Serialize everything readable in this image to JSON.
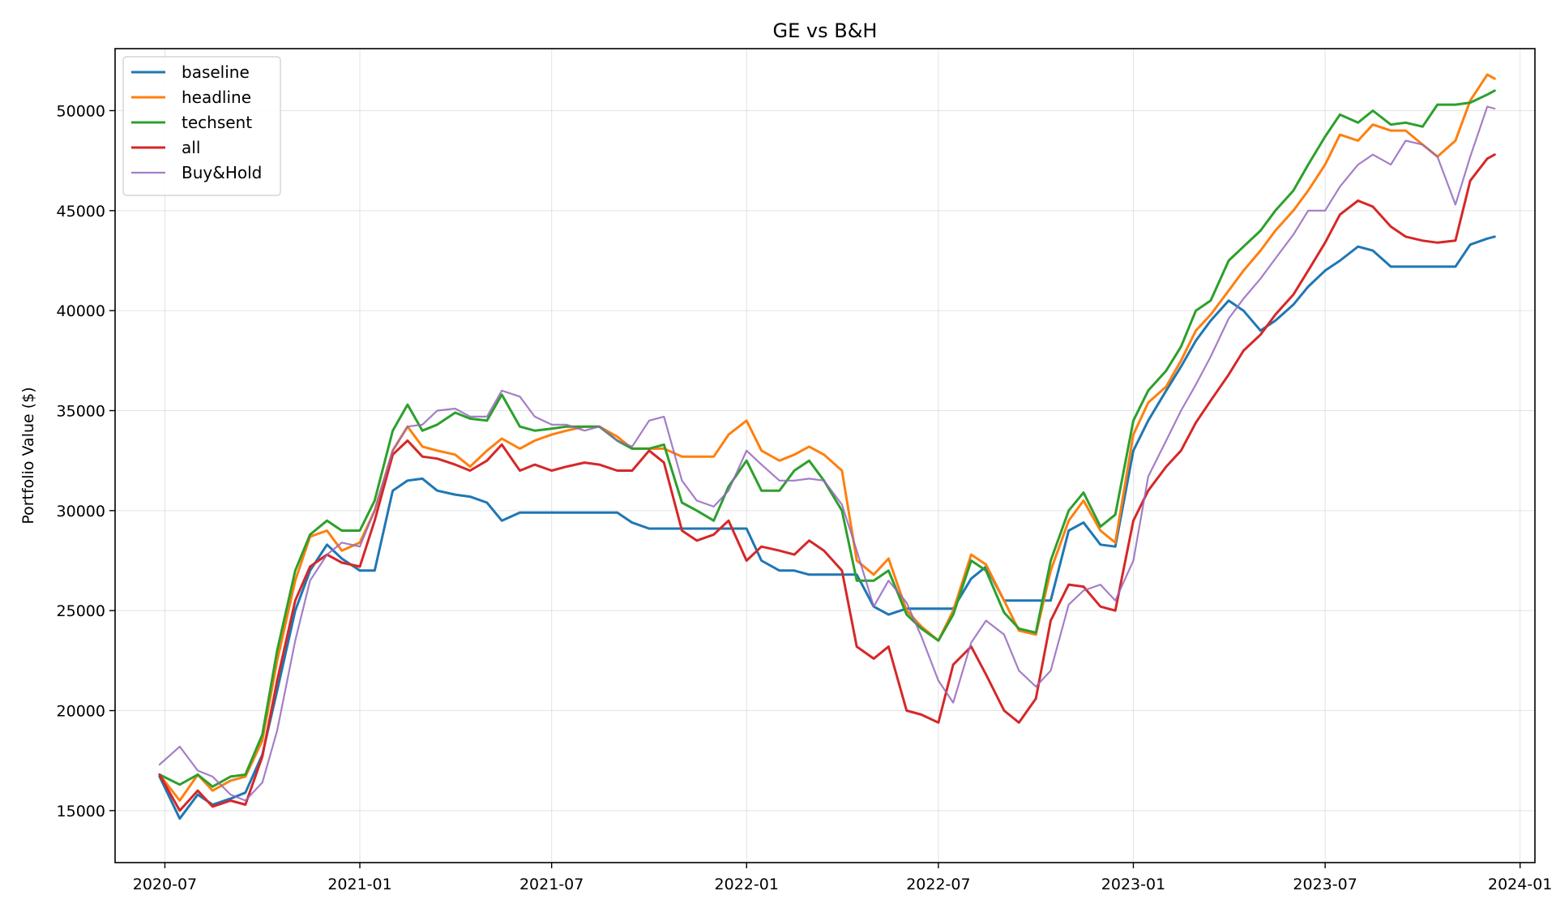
{
  "chart_data": {
    "type": "line",
    "title": "GE vs B&H",
    "xlabel": "",
    "ylabel": "Portfolio Value ($)",
    "x_ticks": [
      "2020-07",
      "2021-01",
      "2021-07",
      "2022-01",
      "2022-07",
      "2023-01",
      "2023-07",
      "2024-01"
    ],
    "y_ticks": [
      15000,
      20000,
      25000,
      30000,
      35000,
      40000,
      45000,
      50000
    ],
    "xlim": [
      "2020-05-15",
      "2024-01-15"
    ],
    "ylim": [
      12400,
      53100
    ],
    "grid": true,
    "legend_position": "top-left",
    "x": [
      "2020-06-26",
      "2020-07-15",
      "2020-08-01",
      "2020-08-15",
      "2020-09-01",
      "2020-09-15",
      "2020-10-01",
      "2020-10-15",
      "2020-11-01",
      "2020-11-15",
      "2020-12-01",
      "2020-12-15",
      "2021-01-01",
      "2021-01-15",
      "2021-02-01",
      "2021-02-15",
      "2021-03-01",
      "2021-03-15",
      "2021-04-01",
      "2021-04-15",
      "2021-05-01",
      "2021-05-15",
      "2021-06-01",
      "2021-06-15",
      "2021-07-01",
      "2021-07-15",
      "2021-08-01",
      "2021-08-15",
      "2021-09-01",
      "2021-09-15",
      "2021-10-01",
      "2021-10-15",
      "2021-11-01",
      "2021-11-15",
      "2021-12-01",
      "2021-12-15",
      "2022-01-01",
      "2022-01-15",
      "2022-02-01",
      "2022-02-15",
      "2022-03-01",
      "2022-03-15",
      "2022-04-01",
      "2022-04-15",
      "2022-05-01",
      "2022-05-15",
      "2022-06-01",
      "2022-06-15",
      "2022-07-01",
      "2022-07-15",
      "2022-08-01",
      "2022-08-15",
      "2022-09-01",
      "2022-09-15",
      "2022-10-01",
      "2022-10-15",
      "2022-11-01",
      "2022-11-15",
      "2022-12-01",
      "2022-12-15",
      "2023-01-01",
      "2023-01-15",
      "2023-02-01",
      "2023-02-15",
      "2023-03-01",
      "2023-03-15",
      "2023-04-01",
      "2023-04-15",
      "2023-05-01",
      "2023-05-15",
      "2023-06-01",
      "2023-06-15",
      "2023-07-01",
      "2023-07-15",
      "2023-08-01",
      "2023-08-15",
      "2023-09-01",
      "2023-09-15",
      "2023-10-01",
      "2023-10-15",
      "2023-11-01",
      "2023-11-15",
      "2023-12-01",
      "2023-12-08"
    ],
    "series": [
      {
        "name": "baseline",
        "color": "#1f77b4",
        "width": 3.0,
        "values": [
          16700,
          14600,
          15800,
          15300,
          15600,
          15900,
          17800,
          21000,
          25000,
          27000,
          28300,
          27600,
          27000,
          27000,
          31000,
          31500,
          31600,
          31000,
          30800,
          30700,
          30400,
          29500,
          29900,
          29900,
          29900,
          29900,
          29900,
          29900,
          29900,
          29400,
          29100,
          29100,
          29100,
          29100,
          29100,
          29100,
          29100,
          27500,
          27000,
          27000,
          26800,
          26800,
          26800,
          26800,
          25200,
          24800,
          25100,
          25100,
          25100,
          25100,
          26600,
          27200,
          25500,
          25500,
          25500,
          25500,
          29000,
          29400,
          28300,
          28200,
          33000,
          34500,
          36000,
          37200,
          38500,
          39500,
          40500,
          40000,
          39000,
          39500,
          40300,
          41200,
          42000,
          42500,
          43200,
          43000,
          42200,
          42200,
          42200,
          42200,
          42200,
          43300,
          43600,
          43700
        ]
      },
      {
        "name": "headline",
        "color": "#ff7f0e",
        "width": 3.0,
        "values": [
          16800,
          15500,
          16800,
          16000,
          16500,
          16700,
          18500,
          22500,
          26500,
          28700,
          29000,
          28000,
          28400,
          30000,
          33000,
          34200,
          33200,
          33000,
          32800,
          32200,
          33000,
          33600,
          33100,
          33500,
          33800,
          34000,
          34200,
          34200,
          33700,
          33100,
          33100,
          33100,
          32700,
          32700,
          32700,
          33800,
          34500,
          33000,
          32500,
          32800,
          33200,
          32800,
          32000,
          27500,
          26800,
          27600,
          25000,
          24200,
          23500,
          25000,
          27800,
          27300,
          25500,
          24000,
          23800,
          27000,
          29500,
          30500,
          29000,
          28400,
          33800,
          35400,
          36200,
          37500,
          39000,
          39800,
          41000,
          42000,
          43000,
          44000,
          45000,
          46000,
          47300,
          48800,
          48500,
          49300,
          49000,
          49000,
          48300,
          47700,
          48500,
          50500,
          51800,
          51600
        ]
      },
      {
        "name": "techsent",
        "color": "#2ca02c",
        "width": 3.0,
        "values": [
          16800,
          16300,
          16800,
          16200,
          16700,
          16800,
          18800,
          23000,
          27000,
          28800,
          29500,
          29000,
          29000,
          30500,
          34000,
          35300,
          34000,
          34300,
          34900,
          34600,
          34500,
          35800,
          34200,
          34000,
          34100,
          34200,
          34200,
          34200,
          33500,
          33100,
          33100,
          33300,
          30400,
          30000,
          29500,
          31200,
          32500,
          31000,
          31000,
          32000,
          32500,
          31500,
          30000,
          26500,
          26500,
          27000,
          24800,
          24100,
          23500,
          24800,
          27500,
          27000,
          24900,
          24100,
          23900,
          27500,
          30000,
          30900,
          29200,
          29800,
          34500,
          36000,
          37000,
          38200,
          40000,
          40500,
          42500,
          43200,
          44000,
          45000,
          46000,
          47300,
          48700,
          49800,
          49400,
          50000,
          49300,
          49400,
          49200,
          50300,
          50300,
          50400,
          50800,
          51000
        ]
      },
      {
        "name": "all",
        "color": "#d62728",
        "width": 3.0,
        "values": [
          16800,
          15000,
          16000,
          15200,
          15500,
          15300,
          17700,
          21500,
          25500,
          27200,
          27800,
          27400,
          27200,
          29500,
          32800,
          33500,
          32700,
          32600,
          32300,
          32000,
          32500,
          33300,
          32000,
          32300,
          32000,
          32200,
          32400,
          32300,
          32000,
          32000,
          33000,
          32400,
          29000,
          28500,
          28800,
          29500,
          27500,
          28200,
          28000,
          27800,
          28500,
          28000,
          27000,
          23200,
          22600,
          23200,
          20000,
          19800,
          19400,
          22300,
          23200,
          21800,
          20000,
          19400,
          20600,
          24500,
          26300,
          26200,
          25200,
          25000,
          29500,
          31000,
          32200,
          33000,
          34400,
          35500,
          36800,
          38000,
          38800,
          39800,
          40800,
          42000,
          43400,
          44800,
          45500,
          45200,
          44200,
          43700,
          43500,
          43400,
          43500,
          46500,
          47600,
          47800
        ]
      },
      {
        "name": "Buy&Hold",
        "color": "#9467bd",
        "width": 2.2,
        "alpha": 0.85,
        "values": [
          17300,
          18200,
          17000,
          16700,
          15800,
          15500,
          16400,
          19000,
          23500,
          26500,
          27800,
          28400,
          28200,
          30000,
          33000,
          34200,
          34300,
          35000,
          35100,
          34700,
          34700,
          36000,
          35700,
          34700,
          34300,
          34300,
          34000,
          34200,
          33500,
          33200,
          34500,
          34700,
          31500,
          30500,
          30200,
          31000,
          33000,
          32300,
          31500,
          31500,
          31600,
          31500,
          30300,
          28000,
          25200,
          26500,
          25400,
          23700,
          21500,
          20400,
          23400,
          24500,
          23800,
          22000,
          21200,
          22000,
          25300,
          26000,
          26300,
          25500,
          27500,
          31700,
          33500,
          35000,
          36300,
          37700,
          39600,
          40600,
          41600,
          42600,
          43800,
          45000,
          45000,
          46200,
          47300,
          47800,
          47300,
          48500,
          48300,
          47700,
          45300,
          47700,
          50200,
          50100
        ]
      }
    ]
  }
}
